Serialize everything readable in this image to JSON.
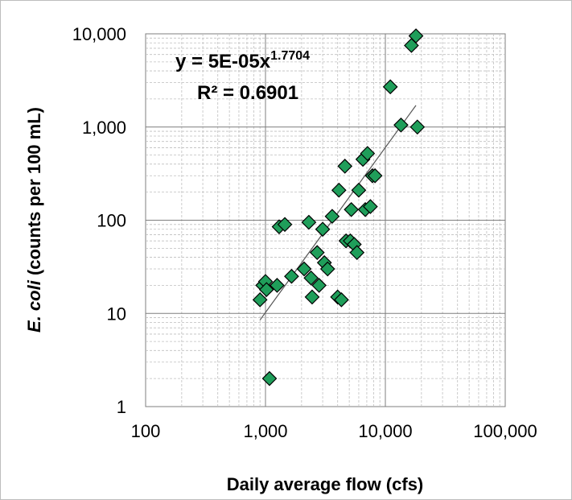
{
  "chart_data": {
    "type": "scatter",
    "xscale": "log",
    "yscale": "log",
    "xlim": [
      100,
      100000
    ],
    "ylim": [
      1,
      10000
    ],
    "xticks": [
      "100",
      "1,000",
      "10,000",
      "100,000"
    ],
    "yticks": [
      "1",
      "10",
      "100",
      "1,000",
      "10,000"
    ],
    "xlabel": "Daily average flow (cfs)",
    "ylabel_italic": "E. coli",
    "ylabel_rest": " (counts per 100 mL)",
    "grid": true,
    "marker_color": "#1f9e5a",
    "marker": "diamond",
    "trendline": {
      "type": "power",
      "a": 5e-05,
      "b": 1.7704,
      "x_range": [
        900,
        18000
      ]
    },
    "equation": {
      "prefix": "y = 5E-05x",
      "exponent": "1.7704",
      "r2": "R² = 0.6901"
    },
    "points": [
      [
        900,
        14
      ],
      [
        950,
        20
      ],
      [
        1000,
        22
      ],
      [
        1020,
        18
      ],
      [
        1080,
        2
      ],
      [
        1250,
        20
      ],
      [
        1300,
        85
      ],
      [
        1450,
        90
      ],
      [
        1650,
        25
      ],
      [
        2100,
        30
      ],
      [
        2300,
        95
      ],
      [
        2400,
        24
      ],
      [
        2450,
        15
      ],
      [
        2700,
        45
      ],
      [
        2800,
        20
      ],
      [
        3000,
        80
      ],
      [
        3100,
        35
      ],
      [
        3300,
        30
      ],
      [
        3600,
        110
      ],
      [
        4000,
        15
      ],
      [
        4100,
        210
      ],
      [
        4300,
        14
      ],
      [
        4600,
        380
      ],
      [
        4700,
        60
      ],
      [
        5100,
        60
      ],
      [
        5200,
        130
      ],
      [
        5500,
        55
      ],
      [
        5800,
        45
      ],
      [
        6000,
        210
      ],
      [
        6500,
        450
      ],
      [
        6800,
        130
      ],
      [
        7100,
        520
      ],
      [
        7500,
        140
      ],
      [
        7800,
        300
      ],
      [
        8200,
        300
      ],
      [
        11000,
        2700
      ],
      [
        13500,
        1050
      ],
      [
        16500,
        7500
      ],
      [
        18000,
        9500
      ],
      [
        18500,
        1000
      ]
    ]
  }
}
